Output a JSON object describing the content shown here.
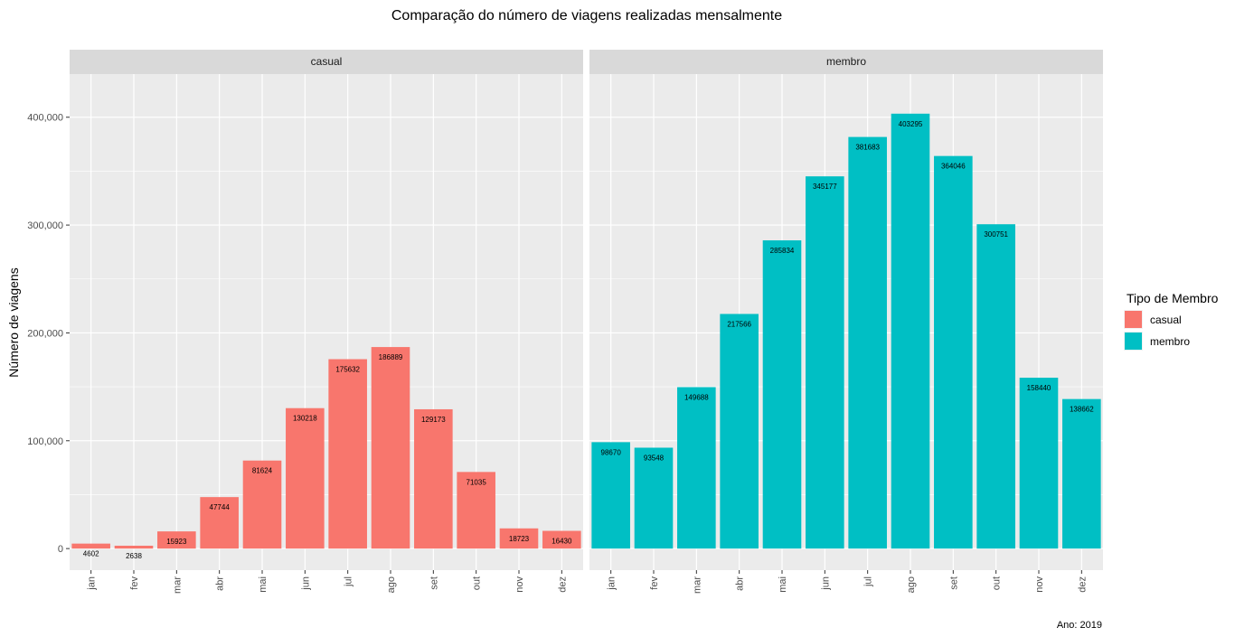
{
  "chart_data": {
    "type": "bar",
    "title": "Comparação do número de viagens realizadas mensalmente",
    "ylabel": "Número de viagens",
    "xlabel": "",
    "caption": "Ano: 2019",
    "categories": [
      "jan",
      "fev",
      "mar",
      "abr",
      "mai",
      "jun",
      "jul",
      "ago",
      "set",
      "out",
      "nov",
      "dez"
    ],
    "ylim": [
      -20000,
      440000
    ],
    "yticks": [
      0,
      100000,
      200000,
      300000,
      400000
    ],
    "ytick_labels": [
      "0",
      "100,000",
      "200,000",
      "300,000",
      "400,000"
    ],
    "grid": true,
    "legend": {
      "title": "Tipo de Membro",
      "placement": "right",
      "entries": [
        {
          "label": "casual",
          "color": "#F8766D"
        },
        {
          "label": "membro",
          "color": "#00BFC4"
        }
      ]
    },
    "panels": [
      {
        "name": "casual",
        "color": "#F8766D",
        "values": [
          4602,
          2638,
          15923,
          47744,
          81624,
          130218,
          175632,
          186889,
          129173,
          71035,
          18723,
          16430
        ]
      },
      {
        "name": "membro",
        "color": "#00BFC4",
        "values": [
          98670,
          93548,
          149688,
          217566,
          285834,
          345177,
          381683,
          403295,
          364046,
          300751,
          158440,
          138662
        ]
      }
    ]
  }
}
